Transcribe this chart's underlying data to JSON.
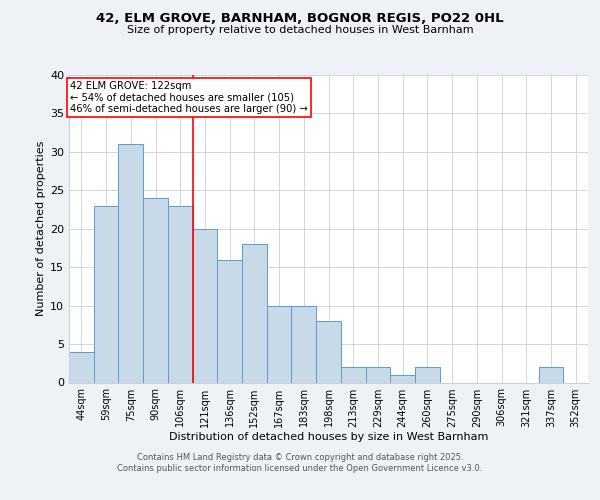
{
  "title1": "42, ELM GROVE, BARNHAM, BOGNOR REGIS, PO22 0HL",
  "title2": "Size of property relative to detached houses in West Barnham",
  "xlabel": "Distribution of detached houses by size in West Barnham",
  "ylabel": "Number of detached properties",
  "categories": [
    "44sqm",
    "59sqm",
    "75sqm",
    "90sqm",
    "106sqm",
    "121sqm",
    "136sqm",
    "152sqm",
    "167sqm",
    "183sqm",
    "198sqm",
    "213sqm",
    "229sqm",
    "244sqm",
    "260sqm",
    "275sqm",
    "290sqm",
    "306sqm",
    "321sqm",
    "337sqm",
    "352sqm"
  ],
  "values": [
    4,
    23,
    31,
    24,
    23,
    20,
    16,
    18,
    10,
    10,
    8,
    2,
    2,
    1,
    2,
    0,
    0,
    0,
    0,
    2,
    0
  ],
  "bar_color": "#c8d9e8",
  "bar_edge_color": "#5b9bd5",
  "red_line_index": 5,
  "annotation_text": "42 ELM GROVE: 122sqm\n← 54% of detached houses are smaller (105)\n46% of semi-detached houses are larger (90) →",
  "footer1": "Contains HM Land Registry data © Crown copyright and database right 2025.",
  "footer2": "Contains public sector information licensed under the Open Government Licence v3.0.",
  "ylim": [
    0,
    40
  ],
  "yticks": [
    0,
    5,
    10,
    15,
    20,
    25,
    30,
    35,
    40
  ],
  "bg_color": "#eef2f7",
  "plot_bg_color": "#ffffff",
  "grid_color": "#c8d0da"
}
